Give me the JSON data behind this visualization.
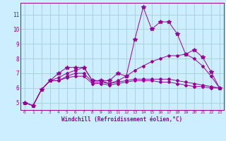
{
  "bg_color": "#cceeff",
  "line_color": "#990099",
  "grid_color": "#99cccc",
  "xlabel": "Windchill (Refroidissement éolien,°C)",
  "xticks": [
    0,
    1,
    2,
    3,
    4,
    5,
    6,
    7,
    8,
    9,
    10,
    11,
    12,
    13,
    14,
    15,
    16,
    17,
    18,
    19,
    20,
    21,
    22,
    23
  ],
  "yticks": [
    5,
    6,
    7,
    8,
    9,
    10,
    11
  ],
  "xlim": [
    -0.5,
    23.5
  ],
  "ylim": [
    4.5,
    11.8
  ],
  "series": [
    {
      "x": [
        0,
        1,
        2,
        3,
        4,
        5,
        6,
        7,
        8,
        9,
        10,
        11,
        12,
        13,
        14,
        15,
        16,
        17,
        18,
        19,
        20,
        21,
        22,
        23
      ],
      "y": [
        5.0,
        4.8,
        5.9,
        6.5,
        7.0,
        7.4,
        7.4,
        7.4,
        6.5,
        6.5,
        6.5,
        7.0,
        6.8,
        9.3,
        11.5,
        10.0,
        10.5,
        10.5,
        9.7,
        8.3,
        8.6,
        8.1,
        7.1,
        6.0
      ],
      "marker": "*",
      "markersize": 4
    },
    {
      "x": [
        0,
        1,
        2,
        3,
        4,
        5,
        6,
        7,
        8,
        9,
        10,
        11,
        12,
        13,
        14,
        15,
        16,
        17,
        18,
        19,
        20,
        21,
        22,
        23
      ],
      "y": [
        5.0,
        4.8,
        5.9,
        6.5,
        6.7,
        7.0,
        7.2,
        7.4,
        6.5,
        6.5,
        6.3,
        6.5,
        6.8,
        7.2,
        7.5,
        7.8,
        8.0,
        8.2,
        8.2,
        8.3,
        8.0,
        7.5,
        6.8,
        6.0
      ],
      "marker": "D",
      "markersize": 2
    },
    {
      "x": [
        0,
        1,
        2,
        3,
        4,
        5,
        6,
        7,
        8,
        9,
        10,
        11,
        12,
        13,
        14,
        15,
        16,
        17,
        18,
        19,
        20,
        21,
        22,
        23
      ],
      "y": [
        5.0,
        4.8,
        5.9,
        6.5,
        6.5,
        6.8,
        7.0,
        7.0,
        6.4,
        6.4,
        6.3,
        6.4,
        6.5,
        6.6,
        6.6,
        6.6,
        6.6,
        6.6,
        6.5,
        6.4,
        6.3,
        6.2,
        6.1,
        6.0
      ],
      "marker": "D",
      "markersize": 2
    },
    {
      "x": [
        0,
        1,
        2,
        3,
        4,
        5,
        6,
        7,
        8,
        9,
        10,
        11,
        12,
        13,
        14,
        15,
        16,
        17,
        18,
        19,
        20,
        21,
        22,
        23
      ],
      "y": [
        5.0,
        4.8,
        5.9,
        6.5,
        6.5,
        6.7,
        6.8,
        6.8,
        6.3,
        6.3,
        6.2,
        6.3,
        6.4,
        6.5,
        6.5,
        6.5,
        6.4,
        6.4,
        6.3,
        6.2,
        6.1,
        6.1,
        6.0,
        6.0
      ],
      "marker": "D",
      "markersize": 2
    }
  ]
}
